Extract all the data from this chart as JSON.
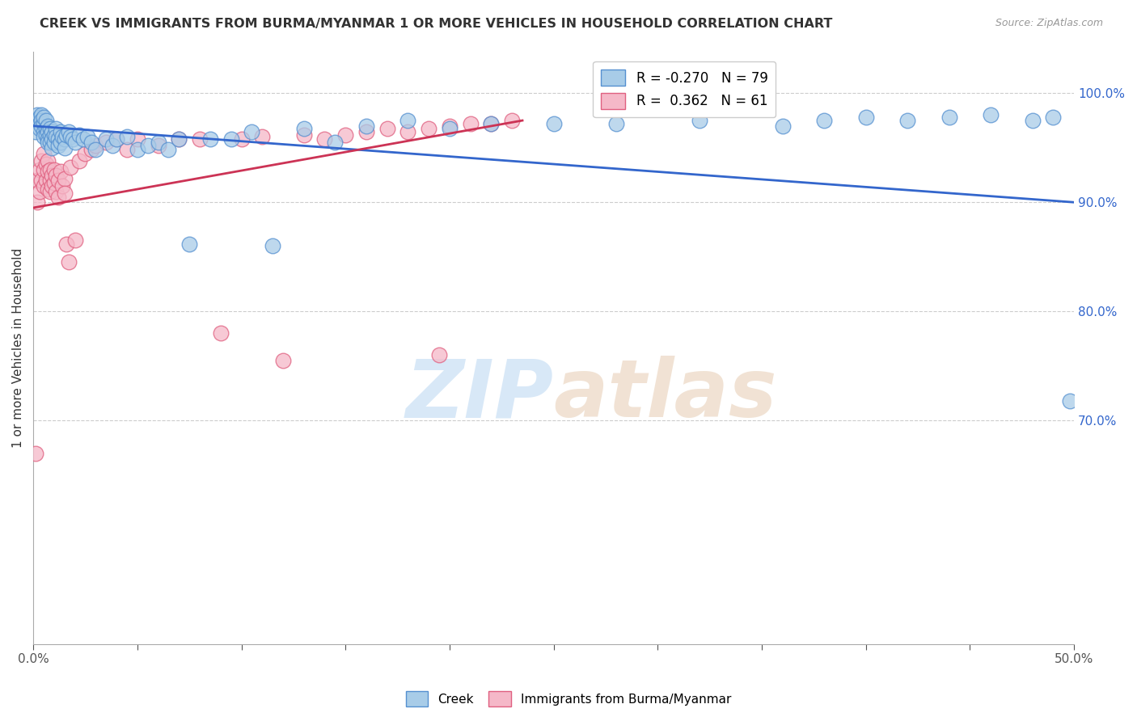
{
  "title": "CREEK VS IMMIGRANTS FROM BURMA/MYANMAR 1 OR MORE VEHICLES IN HOUSEHOLD CORRELATION CHART",
  "source": "Source: ZipAtlas.com",
  "ylabel": "1 or more Vehicles in Household",
  "yaxis_labels": [
    "100.0%",
    "90.0%",
    "80.0%",
    "70.0%"
  ],
  "yaxis_values": [
    1.0,
    0.9,
    0.8,
    0.7
  ],
  "xmin": 0.0,
  "xmax": 0.5,
  "ymin": 0.495,
  "ymax": 1.038,
  "legend_blue": "R = -0.270   N = 79",
  "legend_pink": "R =  0.362   N = 61",
  "blue_color": "#a8cce8",
  "pink_color": "#f5b8c8",
  "blue_edge_color": "#5590d0",
  "pink_edge_color": "#e06080",
  "blue_line_color": "#3366cc",
  "pink_line_color": "#cc3355",
  "watermark_zip": "ZIP",
  "watermark_atlas": "atlas",
  "blue_scatter_x": [
    0.001,
    0.002,
    0.002,
    0.003,
    0.003,
    0.003,
    0.004,
    0.004,
    0.004,
    0.005,
    0.005,
    0.005,
    0.005,
    0.006,
    0.006,
    0.006,
    0.007,
    0.007,
    0.007,
    0.007,
    0.008,
    0.008,
    0.008,
    0.009,
    0.009,
    0.009,
    0.01,
    0.01,
    0.011,
    0.011,
    0.012,
    0.012,
    0.013,
    0.013,
    0.014,
    0.015,
    0.015,
    0.016,
    0.017,
    0.018,
    0.019,
    0.02,
    0.022,
    0.024,
    0.026,
    0.028,
    0.03,
    0.035,
    0.038,
    0.04,
    0.045,
    0.05,
    0.055,
    0.06,
    0.065,
    0.07,
    0.075,
    0.085,
    0.095,
    0.105,
    0.115,
    0.13,
    0.145,
    0.16,
    0.18,
    0.2,
    0.22,
    0.25,
    0.28,
    0.32,
    0.36,
    0.38,
    0.4,
    0.42,
    0.44,
    0.46,
    0.48,
    0.49,
    0.498
  ],
  "blue_scatter_y": [
    0.965,
    0.98,
    0.975,
    0.978,
    0.972,
    0.968,
    0.98,
    0.975,
    0.97,
    0.972,
    0.978,
    0.965,
    0.96,
    0.975,
    0.968,
    0.962,
    0.97,
    0.965,
    0.958,
    0.955,
    0.968,
    0.962,
    0.955,
    0.965,
    0.958,
    0.95,
    0.962,
    0.955,
    0.968,
    0.96,
    0.958,
    0.952,
    0.965,
    0.955,
    0.96,
    0.958,
    0.95,
    0.962,
    0.965,
    0.96,
    0.958,
    0.955,
    0.962,
    0.958,
    0.96,
    0.955,
    0.948,
    0.958,
    0.952,
    0.958,
    0.96,
    0.948,
    0.952,
    0.955,
    0.948,
    0.958,
    0.862,
    0.958,
    0.958,
    0.965,
    0.86,
    0.968,
    0.955,
    0.97,
    0.975,
    0.968,
    0.972,
    0.972,
    0.972,
    0.975,
    0.97,
    0.975,
    0.978,
    0.975,
    0.978,
    0.98,
    0.975,
    0.978,
    0.718
  ],
  "pink_scatter_x": [
    0.001,
    0.002,
    0.002,
    0.003,
    0.003,
    0.004,
    0.004,
    0.005,
    0.005,
    0.005,
    0.006,
    0.006,
    0.007,
    0.007,
    0.007,
    0.008,
    0.008,
    0.008,
    0.009,
    0.009,
    0.01,
    0.01,
    0.011,
    0.011,
    0.012,
    0.012,
    0.013,
    0.014,
    0.015,
    0.015,
    0.016,
    0.017,
    0.018,
    0.02,
    0.022,
    0.025,
    0.028,
    0.03,
    0.035,
    0.04,
    0.045,
    0.05,
    0.06,
    0.07,
    0.08,
    0.09,
    0.1,
    0.11,
    0.12,
    0.13,
    0.14,
    0.15,
    0.16,
    0.17,
    0.18,
    0.19,
    0.195,
    0.2,
    0.21,
    0.22,
    0.23
  ],
  "pink_scatter_y": [
    0.67,
    0.92,
    0.9,
    0.93,
    0.91,
    0.938,
    0.92,
    0.945,
    0.93,
    0.915,
    0.935,
    0.92,
    0.938,
    0.928,
    0.912,
    0.93,
    0.92,
    0.91,
    0.925,
    0.915,
    0.93,
    0.918,
    0.925,
    0.91,
    0.92,
    0.905,
    0.928,
    0.915,
    0.922,
    0.908,
    0.862,
    0.845,
    0.932,
    0.865,
    0.938,
    0.945,
    0.948,
    0.952,
    0.955,
    0.958,
    0.948,
    0.958,
    0.952,
    0.958,
    0.958,
    0.78,
    0.958,
    0.96,
    0.755,
    0.962,
    0.958,
    0.962,
    0.965,
    0.968,
    0.965,
    0.968,
    0.76,
    0.97,
    0.972,
    0.972,
    0.975
  ],
  "blue_line_x": [
    0.0,
    0.5
  ],
  "blue_line_y": [
    0.97,
    0.9
  ],
  "pink_line_x": [
    0.0,
    0.235
  ],
  "pink_line_y": [
    0.895,
    0.975
  ],
  "x_tick_positions": [
    0.0,
    0.05,
    0.1,
    0.15,
    0.2,
    0.25,
    0.3,
    0.35,
    0.4,
    0.45,
    0.5
  ]
}
